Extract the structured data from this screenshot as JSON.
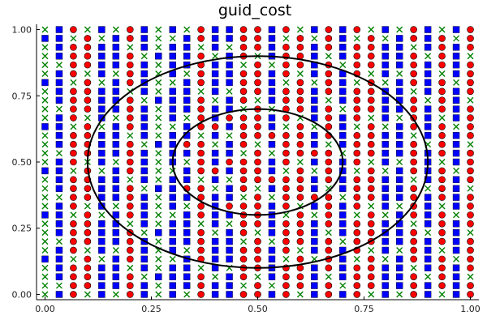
{
  "chart_data": {
    "type": "scatter",
    "title": "guid_cost",
    "xlabel": "",
    "ylabel": "",
    "xlim": [
      -0.02,
      1.02
    ],
    "ylim": [
      -0.02,
      1.02
    ],
    "xticks": [
      0.0,
      0.25,
      0.5,
      0.75,
      1.0
    ],
    "yticks": [
      0.0,
      0.25,
      0.5,
      0.75,
      1.0
    ],
    "xtick_labels": [
      "0.00",
      "0.25",
      "0.50",
      "0.75",
      "1.00"
    ],
    "ytick_labels": [
      "0.00",
      "0.25",
      "0.50",
      "0.75",
      "1.00"
    ],
    "grid": false,
    "legend": "none",
    "colors": {
      "blue_square": "#0000ff",
      "red_circle": "#ff0000",
      "green_x": "#008000",
      "curve": "#000000"
    },
    "grid_points": {
      "nx": 31,
      "ny": 31,
      "min": 0.0,
      "max": 1.0
    },
    "category_rule": "Each point is assigned a marker by its x-column index: indices 0..30 map to a repeating pattern of blue squares, red circles and green crosses; points inside the inner ellipse favor red circles.",
    "curves": [
      {
        "name": "outer-ellipse",
        "cx": 0.5,
        "cy": 0.5,
        "rx": 0.4,
        "ry": 0.4
      },
      {
        "name": "inner-ellipse",
        "cx": 0.5,
        "cy": 0.5,
        "rx": 0.2,
        "ry": 0.2
      }
    ]
  }
}
